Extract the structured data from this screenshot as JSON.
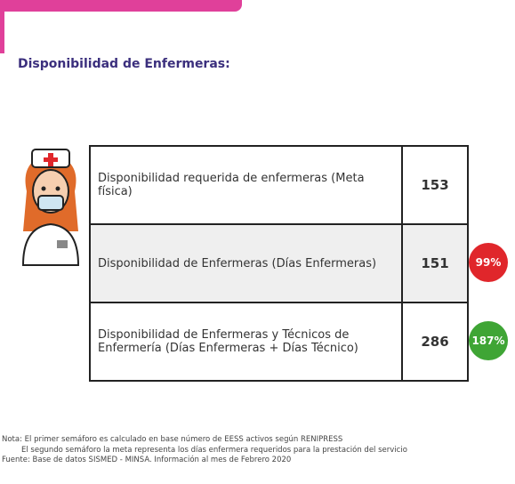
{
  "header": {
    "title": "Disponibilidad de Enfermeras:"
  },
  "table": {
    "rows": [
      [
        "Disponibilidad requerida de enfermeras (Meta física)",
        153
      ],
      [
        "Disponibilidad de Enfermeras (Días Enfermeras)",
        151
      ],
      [
        "Disponibilidad de Enfermeras y Técnicos de Enfermería (Días Enfermeras + Días Técnico)",
        286
      ]
    ]
  },
  "badges": [
    {
      "row": 1,
      "label": "99%",
      "color": "#e0262b"
    },
    {
      "row": 2,
      "label": "187%",
      "color": "#3fa535"
    }
  ],
  "notes": [
    "Nota: El primer semáforo es calculado en base número de EESS activos según RENIPRESS",
    "El segundo semáforo la meta representa los días enfermera requeridos para la prestación del servicio",
    "Fuente: Base de datos SISMED - MINSA. Información al mes de Febrero 2020"
  ]
}
